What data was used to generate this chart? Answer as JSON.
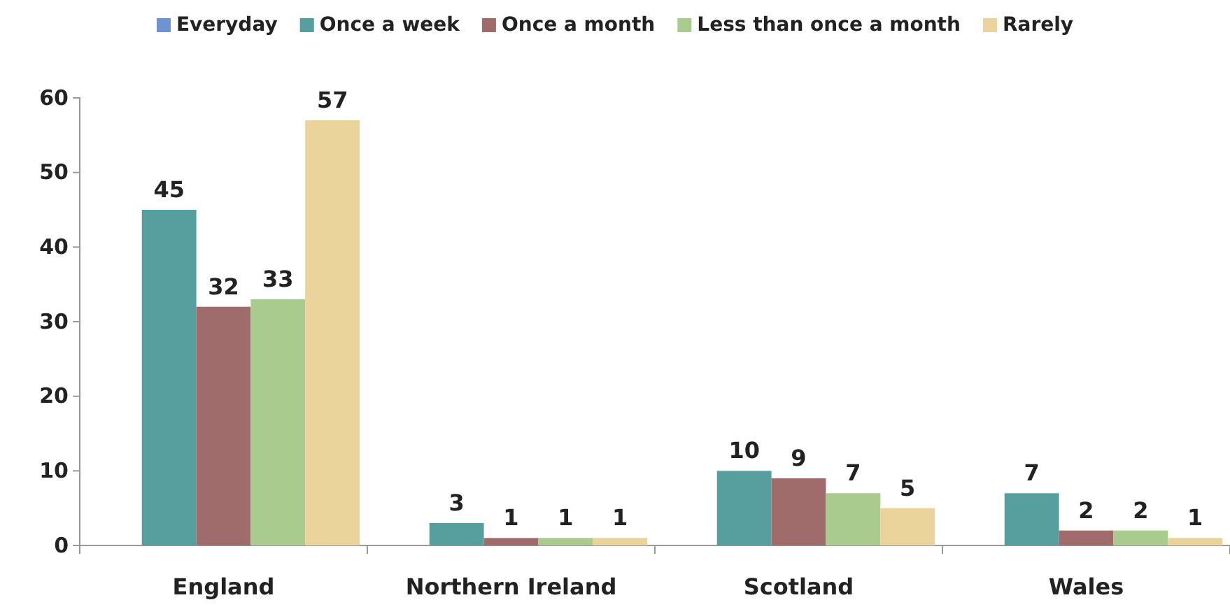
{
  "chart_data": {
    "type": "bar",
    "categories": [
      "England",
      "Northern Ireland",
      "Scotland",
      "Wales"
    ],
    "series": [
      {
        "name": "Everyday",
        "color": "#6f93d0",
        "values": [
          null,
          null,
          null,
          null
        ]
      },
      {
        "name": "Once a week",
        "color": "#579e9e",
        "values": [
          45,
          3,
          10,
          7
        ]
      },
      {
        "name": "Once a month",
        "color": "#a06b6b",
        "values": [
          32,
          1,
          9,
          2
        ]
      },
      {
        "name": "Less than once a month",
        "color": "#a9cb8e",
        "values": [
          33,
          1,
          7,
          2
        ]
      },
      {
        "name": "Rarely",
        "color": "#ebd39c",
        "values": [
          57,
          1,
          5,
          1
        ]
      }
    ],
    "ylim": [
      0,
      60
    ],
    "yticks": [
      0,
      10,
      20,
      30,
      40,
      50,
      60
    ],
    "grid": false,
    "legend": "top",
    "data_labels": true
  }
}
